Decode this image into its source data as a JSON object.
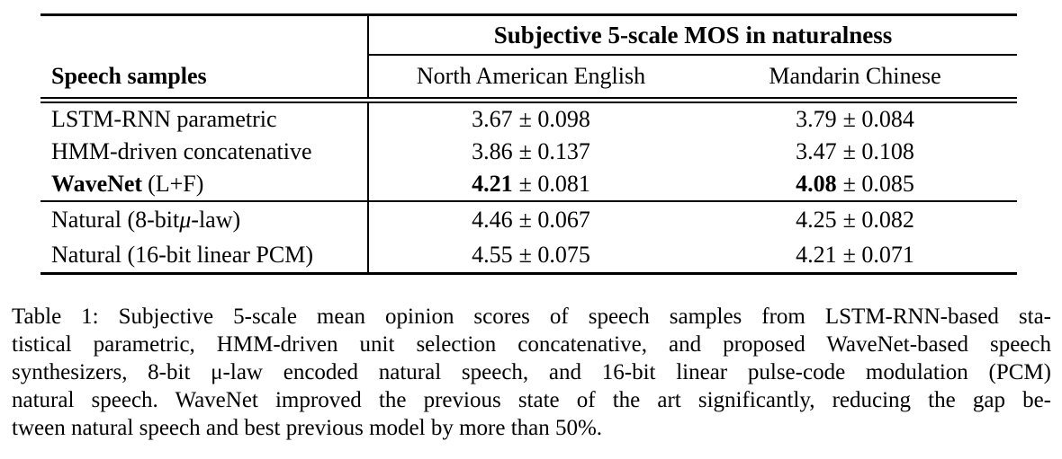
{
  "table": {
    "header": {
      "group_title": "Subjective 5-scale MOS in naturalness",
      "row_label_header": "Speech samples",
      "col1": "North American English",
      "col2": "Mandarin Chinese"
    },
    "rows": [
      {
        "label": "LSTM-RNN parametric",
        "col1_mean": "3.67",
        "col1_err": "± 0.098",
        "col2_mean": "3.79",
        "col2_err": "± 0.084"
      },
      {
        "label": "HMM-driven concatenative",
        "col1_mean": "3.86",
        "col1_err": "± 0.137",
        "col2_mean": "3.47",
        "col2_err": "± 0.108"
      },
      {
        "label_bold": "WaveNet",
        "label_rest": "(L+F)",
        "col1_mean": "4.21",
        "col1_err": "± 0.081",
        "col2_mean": "4.08",
        "col2_err": "± 0.085"
      },
      {
        "label_pre": "Natural (8-bit ",
        "label_mu": "μ",
        "label_post": "-law)",
        "col1_mean": "4.46",
        "col1_err": "± 0.067",
        "col2_mean": "4.25",
        "col2_err": "± 0.082"
      },
      {
        "label": "Natural (16-bit linear PCM)",
        "col1_mean": "4.55",
        "col1_err": "± 0.075",
        "col2_mean": "4.21",
        "col2_err": "± 0.071"
      }
    ]
  },
  "caption": {
    "lines": [
      "Table 1: Subjective 5-scale mean opinion scores of speech samples from LSTM-RNN-based sta-",
      "tistical parametric, HMM-driven unit selection concatenative, and proposed WaveNet-based speech",
      "synthesizers, 8-bit μ-law encoded natural speech, and 16-bit linear pulse-code modulation (PCM)",
      "natural speech. WaveNet improved the previous state of the art significantly, reducing the gap be-",
      "tween natural speech and best previous model by more than 50%."
    ]
  },
  "chart_data": {
    "type": "table",
    "title": "Subjective 5-scale MOS in naturalness",
    "columns": [
      "Speech samples",
      "North American English",
      "Mandarin Chinese"
    ],
    "rows": [
      [
        "LSTM-RNN parametric",
        "3.67 ± 0.098",
        "3.79 ± 0.084"
      ],
      [
        "HMM-driven concatenative",
        "3.86 ± 0.137",
        "3.47 ± 0.108"
      ],
      [
        "WaveNet (L+F)",
        "4.21 ± 0.081",
        "4.08 ± 0.085"
      ],
      [
        "Natural (8-bit μ-law)",
        "4.46 ± 0.067",
        "4.25 ± 0.082"
      ],
      [
        "Natural (16-bit linear PCM)",
        "4.55 ± 0.075",
        "4.21 ± 0.071"
      ]
    ]
  }
}
